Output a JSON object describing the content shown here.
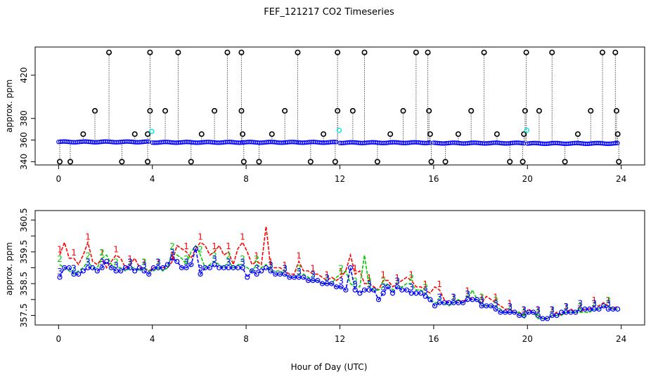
{
  "title": "FEF_121217  CO2 Timeseries",
  "xlabel": "Hour of Day (UTC)",
  "chart_data": [
    {
      "type": "scatter",
      "ylabel": "approx. ppm",
      "xlim": [
        -1,
        25
      ],
      "ylim": [
        337,
        446
      ],
      "xticks": [
        0,
        4,
        8,
        12,
        16,
        20,
        24
      ],
      "yticks": [
        340,
        360,
        380,
        420
      ],
      "ytick_labels": [
        "340",
        "360",
        "380",
        "420"
      ],
      "series_colors": {
        "blue": "#0000ff",
        "cyan": "#00e5e5",
        "spikes": "#000000"
      },
      "baseline_segments": [
        {
          "x": [
            0.0,
            3.9
          ],
          "y": 358.3
        },
        {
          "x": [
            4.0,
            11.9
          ],
          "y": 357.9
        },
        {
          "x": [
            12.0,
            15.9
          ],
          "y": 357.6
        },
        {
          "x": [
            16.0,
            19.9
          ],
          "y": 357.2
        },
        {
          "x": [
            20.0,
            23.9
          ],
          "y": 356.9
        }
      ],
      "cyan_points": [
        {
          "x": 3.97,
          "y": 368.0
        },
        {
          "x": 11.97,
          "y": 369.0
        },
        {
          "x": 19.97,
          "y": 369.0
        }
      ],
      "spikes": [
        {
          "x": 0.05,
          "y": 340.0
        },
        {
          "x": 0.5,
          "y": 340.0
        },
        {
          "x": 1.05,
          "y": 365.5
        },
        {
          "x": 1.55,
          "y": 387.0
        },
        {
          "x": 2.15,
          "y": 441.0
        },
        {
          "x": 2.7,
          "y": 340.0
        },
        {
          "x": 3.25,
          "y": 365.5
        },
        {
          "x": 3.8,
          "y": 365.5
        },
        {
          "x": 3.8,
          "y": 340.0
        },
        {
          "x": 3.9,
          "y": 387.0
        },
        {
          "x": 3.9,
          "y": 441.0
        },
        {
          "x": 4.55,
          "y": 387.0
        },
        {
          "x": 5.1,
          "y": 441.0
        },
        {
          "x": 5.65,
          "y": 340.0
        },
        {
          "x": 6.1,
          "y": 365.5
        },
        {
          "x": 6.65,
          "y": 387.0
        },
        {
          "x": 7.2,
          "y": 441.0
        },
        {
          "x": 7.8,
          "y": 441.0
        },
        {
          "x": 7.8,
          "y": 387.0
        },
        {
          "x": 7.85,
          "y": 365.5
        },
        {
          "x": 7.9,
          "y": 340.0
        },
        {
          "x": 8.55,
          "y": 340.0
        },
        {
          "x": 9.1,
          "y": 365.5
        },
        {
          "x": 9.65,
          "y": 387.0
        },
        {
          "x": 10.2,
          "y": 441.0
        },
        {
          "x": 10.75,
          "y": 340.0
        },
        {
          "x": 11.3,
          "y": 365.5
        },
        {
          "x": 11.8,
          "y": 340.0
        },
        {
          "x": 11.9,
          "y": 387.0
        },
        {
          "x": 11.9,
          "y": 441.0
        },
        {
          "x": 12.55,
          "y": 387.0
        },
        {
          "x": 13.05,
          "y": 441.0
        },
        {
          "x": 13.6,
          "y": 340.0
        },
        {
          "x": 14.15,
          "y": 365.5
        },
        {
          "x": 14.7,
          "y": 387.0
        },
        {
          "x": 15.25,
          "y": 441.0
        },
        {
          "x": 15.75,
          "y": 441.0
        },
        {
          "x": 15.8,
          "y": 387.0
        },
        {
          "x": 15.85,
          "y": 365.5
        },
        {
          "x": 15.9,
          "y": 340.0
        },
        {
          "x": 16.5,
          "y": 340.0
        },
        {
          "x": 17.05,
          "y": 365.5
        },
        {
          "x": 17.6,
          "y": 387.0
        },
        {
          "x": 18.15,
          "y": 441.0
        },
        {
          "x": 18.7,
          "y": 365.5
        },
        {
          "x": 19.25,
          "y": 340.0
        },
        {
          "x": 19.8,
          "y": 340.0
        },
        {
          "x": 19.85,
          "y": 365.5
        },
        {
          "x": 19.9,
          "y": 387.0
        },
        {
          "x": 19.95,
          "y": 441.0
        },
        {
          "x": 21.05,
          "y": 441.0
        },
        {
          "x": 20.5,
          "y": 387.0
        },
        {
          "x": 21.6,
          "y": 340.0
        },
        {
          "x": 22.15,
          "y": 365.5
        },
        {
          "x": 22.7,
          "y": 387.0
        },
        {
          "x": 23.2,
          "y": 441.0
        },
        {
          "x": 23.75,
          "y": 441.0
        },
        {
          "x": 23.8,
          "y": 387.0
        },
        {
          "x": 23.85,
          "y": 365.5
        },
        {
          "x": 23.9,
          "y": 340.0
        }
      ]
    },
    {
      "type": "line",
      "ylabel": "approx. ppm",
      "xlim": [
        -1,
        25
      ],
      "ylim": [
        357.2,
        360.8
      ],
      "xticks": [
        0,
        4,
        8,
        12,
        16,
        20,
        24
      ],
      "yticks": [
        357.5,
        358.5,
        359.5,
        360.5
      ],
      "ytick_labels": [
        "357.5",
        "358.5",
        "359.5",
        "360.5"
      ],
      "minor_yticks": [
        358.0,
        359.0,
        360.0
      ],
      "series": [
        {
          "name": "1",
          "color": "#ff0000",
          "x": [
            0.05,
            0.25,
            0.45,
            0.65,
            0.85,
            1.05,
            1.25,
            1.45,
            1.65,
            1.85,
            2.05,
            2.25,
            2.45,
            2.65,
            2.85,
            3.05,
            3.25,
            3.45,
            3.65,
            3.85,
            4.05,
            4.25,
            4.45,
            4.65,
            4.85,
            5.05,
            5.25,
            5.45,
            5.65,
            5.85,
            6.05,
            6.25,
            6.45,
            6.65,
            6.85,
            7.05,
            7.25,
            7.45,
            7.65,
            7.85,
            8.05,
            8.25,
            8.45,
            8.65,
            8.85,
            9.05,
            9.25,
            9.45,
            9.65,
            9.85,
            10.05,
            10.25,
            10.45,
            10.65,
            10.85,
            11.05,
            11.25,
            11.45,
            11.65,
            11.85,
            12.05,
            12.25,
            12.45,
            12.65,
            12.85,
            13.05,
            13.25,
            13.45,
            13.65,
            13.85,
            14.05,
            14.25,
            14.45,
            14.65,
            14.85,
            15.05,
            15.25,
            15.45,
            15.65,
            15.85,
            16.05,
            16.25,
            16.45,
            16.65,
            16.85,
            17.05,
            17.25,
            17.45,
            17.65,
            17.85,
            18.05,
            18.25,
            18.45,
            18.65,
            18.85,
            19.05,
            19.25,
            19.45,
            19.65,
            19.85,
            20.05,
            20.25,
            20.45,
            20.65,
            20.85,
            21.05,
            21.25,
            21.45,
            21.65,
            21.85,
            22.05,
            22.25,
            22.45,
            22.65,
            22.85,
            23.05,
            23.25,
            23.45,
            23.65,
            23.85
          ],
          "y": [
            359.4,
            359.8,
            359.3,
            359.3,
            359.1,
            359.4,
            359.8,
            359.2,
            359.1,
            359.3,
            359.0,
            359.2,
            359.4,
            359.3,
            359.0,
            359.1,
            359.3,
            359.0,
            359.0,
            358.9,
            359.0,
            359.0,
            359.0,
            359.0,
            359.2,
            359.7,
            359.6,
            359.5,
            359.3,
            359.6,
            359.8,
            359.7,
            359.4,
            359.5,
            359.7,
            359.4,
            359.5,
            359.1,
            359.6,
            359.8,
            359.5,
            359.1,
            359.2,
            359.1,
            360.3,
            359.0,
            359.0,
            359.0,
            358.9,
            358.8,
            358.8,
            359.2,
            358.9,
            358.9,
            358.8,
            358.8,
            358.7,
            358.6,
            358.7,
            358.6,
            358.7,
            358.9,
            359.4,
            358.8,
            358.9,
            358.5,
            358.5,
            358.4,
            358.3,
            358.6,
            358.6,
            358.4,
            358.5,
            358.6,
            358.7,
            358.6,
            358.4,
            358.4,
            358.3,
            358.2,
            358.4,
            358.3,
            358.0,
            357.9,
            357.9,
            358.0,
            357.9,
            358.1,
            358.0,
            358.0,
            357.9,
            358.1,
            358.0,
            357.9,
            357.8,
            357.7,
            357.7,
            357.6,
            357.6,
            357.5,
            357.7,
            357.6,
            357.5,
            357.4,
            357.4,
            357.5,
            357.6,
            357.5,
            357.6,
            357.7,
            357.6,
            357.6,
            357.7,
            357.7,
            357.8,
            357.8,
            357.9,
            357.8,
            357.7,
            357.8
          ]
        },
        {
          "name": "2",
          "color": "#00cc00",
          "x": [
            0.05,
            0.25,
            0.45,
            0.65,
            0.85,
            1.05,
            1.25,
            1.45,
            1.65,
            1.85,
            2.05,
            2.25,
            2.45,
            2.65,
            2.85,
            3.05,
            3.25,
            3.45,
            3.65,
            3.85,
            4.05,
            4.25,
            4.45,
            4.65,
            4.85,
            5.05,
            5.25,
            5.45,
            5.65,
            5.85,
            6.05,
            6.25,
            6.45,
            6.65,
            6.85,
            7.05,
            7.25,
            7.45,
            7.65,
            7.85,
            8.05,
            8.25,
            8.45,
            8.65,
            8.85,
            9.05,
            9.25,
            9.45,
            9.65,
            9.85,
            10.05,
            10.25,
            10.45,
            10.65,
            10.85,
            11.05,
            11.25,
            11.45,
            11.65,
            11.85,
            12.05,
            12.25,
            12.45,
            12.65,
            12.85,
            13.05,
            13.25,
            13.45,
            13.65,
            13.85,
            14.05,
            14.25,
            14.45,
            14.65,
            14.85,
            15.05,
            15.25,
            15.45,
            15.65,
            15.85,
            16.05,
            16.25,
            16.45,
            16.65,
            16.85,
            17.05,
            17.25,
            17.45,
            17.65,
            17.85,
            18.05,
            18.25,
            18.45,
            18.65,
            18.85,
            19.05,
            19.25,
            19.45,
            19.65,
            19.85,
            20.05,
            20.25,
            20.45,
            20.65,
            20.85,
            21.05,
            21.25,
            21.45,
            21.65,
            21.85,
            22.05,
            22.25,
            22.45,
            22.65,
            22.85,
            23.05,
            23.25,
            23.45,
            23.65,
            23.85
          ],
          "y": [
            359.1,
            359.0,
            358.9,
            358.8,
            358.9,
            359.0,
            359.2,
            359.0,
            359.0,
            359.3,
            359.4,
            359.1,
            359.0,
            359.0,
            358.9,
            359.0,
            359.0,
            358.9,
            359.0,
            358.9,
            358.9,
            359.0,
            358.9,
            359.0,
            359.5,
            359.4,
            359.3,
            359.1,
            359.5,
            359.7,
            359.4,
            359.0,
            359.1,
            359.2,
            359.1,
            359.0,
            359.2,
            359.0,
            359.1,
            359.1,
            359.0,
            358.9,
            359.1,
            359.0,
            359.1,
            358.9,
            358.9,
            358.9,
            358.8,
            358.7,
            358.7,
            358.8,
            358.8,
            358.7,
            358.6,
            358.6,
            358.5,
            358.5,
            358.5,
            358.7,
            358.8,
            358.9,
            358.5,
            358.4,
            358.4,
            359.4,
            358.4,
            358.3,
            358.3,
            358.4,
            358.5,
            358.3,
            358.4,
            358.4,
            358.5,
            358.5,
            358.3,
            358.3,
            358.2,
            358.0,
            357.9,
            357.9,
            357.9,
            357.8,
            357.9,
            358.0,
            357.9,
            358.0,
            358.3,
            358.0,
            357.9,
            357.8,
            357.8,
            357.8,
            357.7,
            357.6,
            357.6,
            357.6,
            357.6,
            357.4,
            357.6,
            357.6,
            357.4,
            357.4,
            357.4,
            357.5,
            357.5,
            357.5,
            357.6,
            357.6,
            357.6,
            357.6,
            357.6,
            357.6,
            357.7,
            357.7,
            357.8,
            357.8,
            357.7,
            357.7
          ]
        },
        {
          "name": "3",
          "color": "#0000ff",
          "x": [
            0.05,
            0.25,
            0.45,
            0.65,
            0.85,
            1.05,
            1.25,
            1.45,
            1.65,
            1.85,
            2.05,
            2.25,
            2.45,
            2.65,
            2.85,
            3.05,
            3.25,
            3.45,
            3.65,
            3.85,
            4.05,
            4.25,
            4.45,
            4.65,
            4.85,
            5.05,
            5.25,
            5.45,
            5.65,
            5.85,
            6.05,
            6.25,
            6.45,
            6.65,
            6.85,
            7.05,
            7.25,
            7.45,
            7.65,
            7.85,
            8.05,
            8.25,
            8.45,
            8.65,
            8.85,
            9.05,
            9.25,
            9.45,
            9.65,
            9.85,
            10.05,
            10.25,
            10.45,
            10.65,
            10.85,
            11.05,
            11.25,
            11.45,
            11.65,
            11.85,
            12.05,
            12.25,
            12.45,
            12.65,
            12.85,
            13.05,
            13.25,
            13.45,
            13.65,
            13.85,
            14.05,
            14.25,
            14.45,
            14.65,
            14.85,
            15.05,
            15.25,
            15.45,
            15.65,
            15.85,
            16.05,
            16.25,
            16.45,
            16.65,
            16.85,
            17.05,
            17.25,
            17.45,
            17.65,
            17.85,
            18.05,
            18.25,
            18.45,
            18.65,
            18.85,
            19.05,
            19.25,
            19.45,
            19.65,
            19.85,
            20.05,
            20.25,
            20.45,
            20.65,
            20.85,
            21.05,
            21.25,
            21.45,
            21.65,
            21.85,
            22.05,
            22.25,
            22.45,
            22.65,
            22.85,
            23.05,
            23.25,
            23.45,
            23.65,
            23.85
          ],
          "y": [
            358.7,
            359.0,
            359.0,
            358.8,
            358.8,
            358.9,
            359.0,
            359.0,
            358.9,
            359.0,
            359.2,
            359.0,
            358.9,
            358.9,
            359.0,
            359.0,
            358.9,
            359.0,
            358.9,
            358.8,
            359.0,
            359.0,
            359.0,
            359.1,
            359.3,
            359.2,
            359.0,
            359.0,
            359.1,
            359.6,
            358.8,
            359.0,
            359.0,
            359.1,
            359.0,
            359.0,
            359.0,
            359.0,
            359.0,
            359.0,
            358.7,
            358.9,
            358.8,
            358.9,
            359.0,
            358.9,
            358.8,
            358.8,
            358.8,
            358.7,
            358.7,
            358.7,
            358.7,
            358.6,
            358.6,
            358.6,
            358.5,
            358.5,
            358.5,
            358.4,
            358.4,
            358.3,
            359.0,
            358.3,
            358.2,
            358.3,
            358.3,
            358.3,
            358.0,
            358.2,
            358.4,
            358.2,
            358.4,
            358.3,
            358.3,
            358.2,
            358.2,
            358.2,
            358.1,
            358.0,
            357.8,
            357.9,
            357.9,
            357.9,
            357.9,
            357.9,
            357.9,
            358.0,
            358.0,
            358.0,
            357.8,
            357.8,
            357.8,
            357.7,
            357.6,
            357.6,
            357.6,
            357.6,
            357.5,
            357.5,
            357.6,
            357.6,
            357.5,
            357.4,
            357.4,
            357.5,
            357.5,
            357.6,
            357.6,
            357.6,
            357.6,
            357.7,
            357.7,
            357.7,
            357.7,
            357.7,
            357.8,
            357.7,
            357.7,
            357.7
          ]
        }
      ]
    }
  ]
}
